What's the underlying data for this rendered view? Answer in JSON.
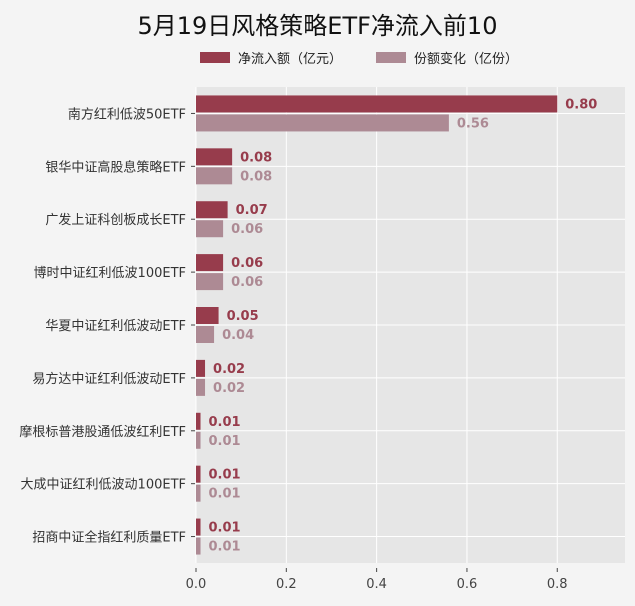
{
  "chart_data": {
    "type": "bar",
    "orientation": "horizontal",
    "title": "5月19日风格策略ETF净流入前10",
    "categories": [
      "南方红利低波50ETF",
      "银华中证高股息策略ETF",
      "广发上证科创板成长ETF",
      "博时中证红利低波100ETF",
      "华夏中证红利低波动ETF",
      "易方达中证红利低波动ETF",
      "摩根标普港股通低波红利ETF",
      "大成中证红利低波动100ETF",
      "招商中证全指红利质量ETF"
    ],
    "series": [
      {
        "name": "净流入额（亿元）",
        "values": [
          0.8,
          0.08,
          0.07,
          0.06,
          0.05,
          0.02,
          0.01,
          0.01,
          0.01
        ],
        "labels": [
          "0.80",
          "0.08",
          "0.07",
          "0.06",
          "0.05",
          "0.02",
          "0.01",
          "0.01",
          "0.01"
        ],
        "color": "#973c4c"
      },
      {
        "name": "份额变化（亿份）",
        "values": [
          0.56,
          0.08,
          0.06,
          0.06,
          0.04,
          0.02,
          0.01,
          0.01,
          0.01
        ],
        "labels": [
          "0.56",
          "0.08",
          "0.06",
          "0.06",
          "0.04",
          "0.02",
          "0.01",
          "0.01",
          "0.01"
        ],
        "color": "#ad8a94"
      }
    ],
    "xlim": [
      0,
      0.95
    ],
    "xticks": [
      "0.0",
      "0.2",
      "0.4",
      "0.6",
      "0.8"
    ],
    "grid": true,
    "legend": "top",
    "plot_background": "#e6e6e6"
  }
}
